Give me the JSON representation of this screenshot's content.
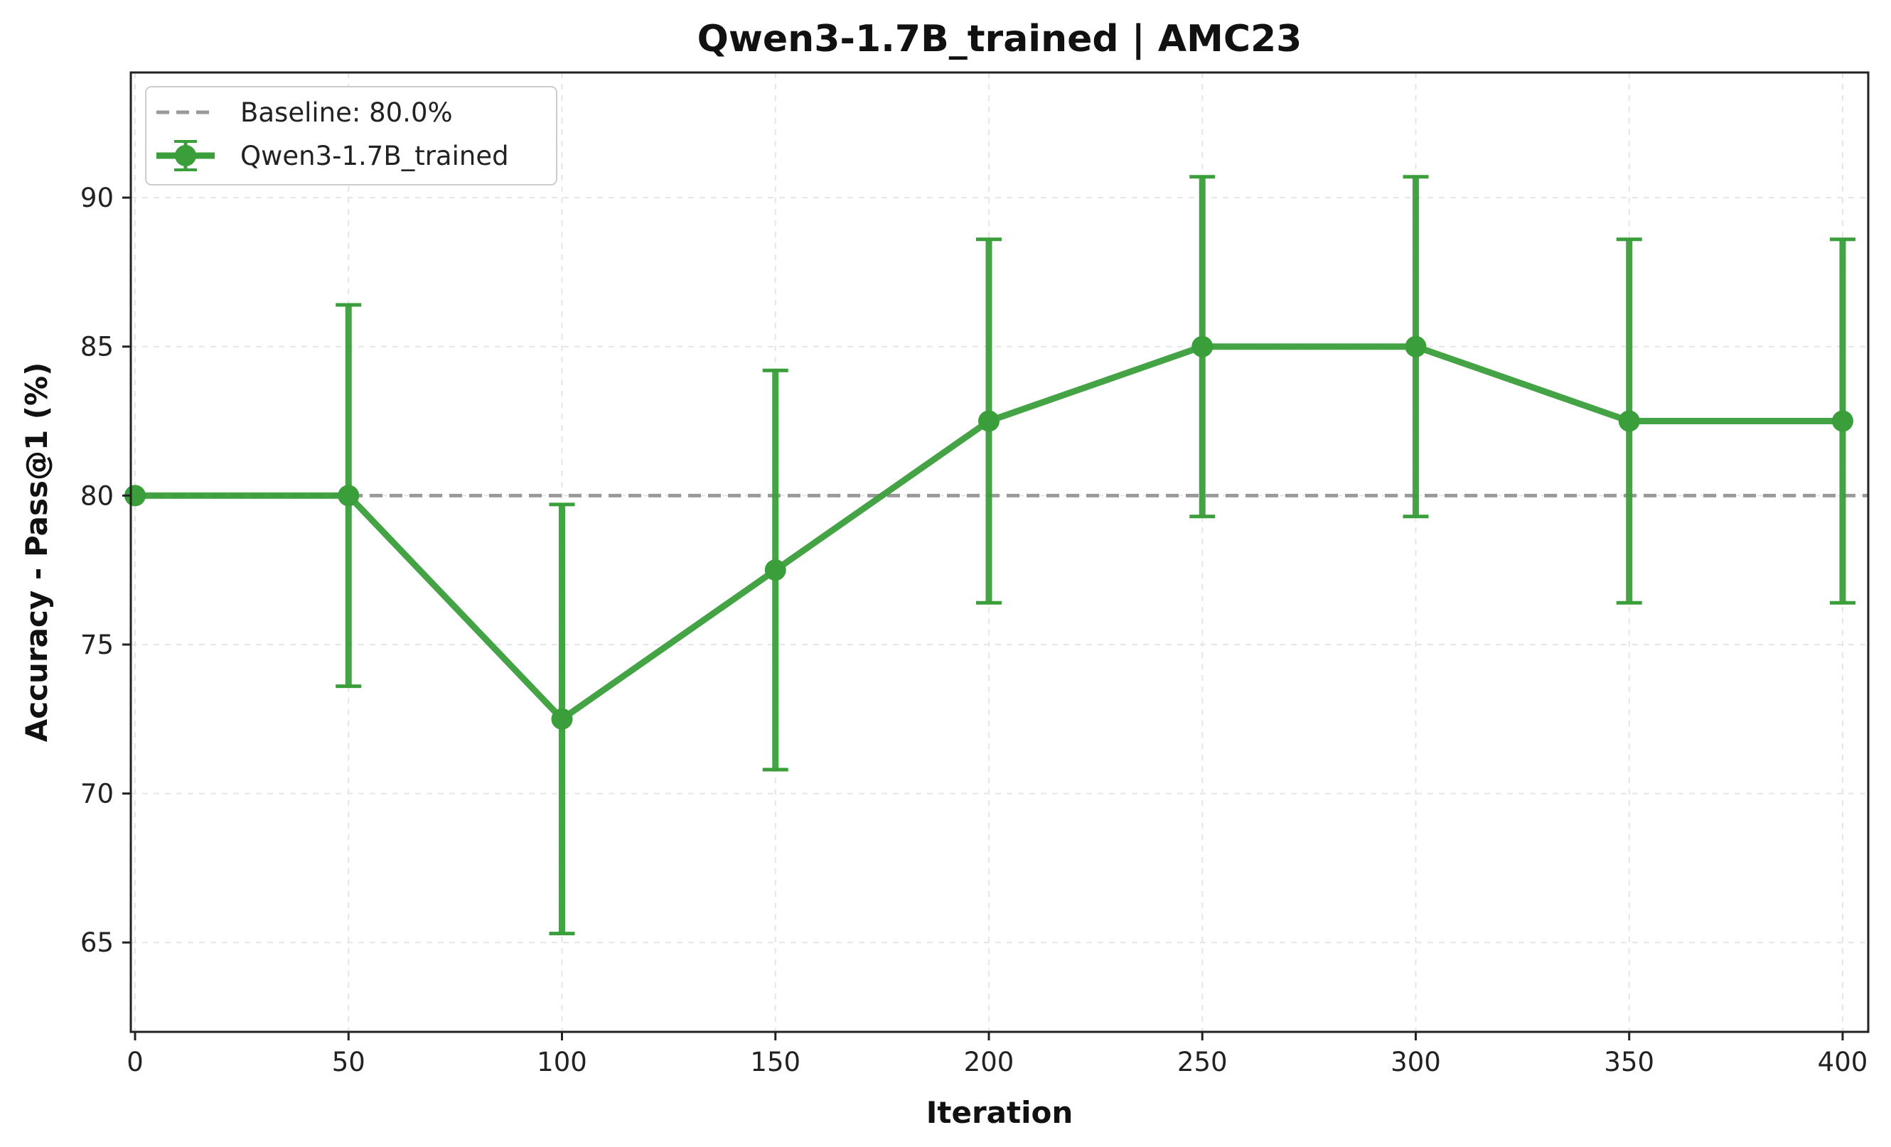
{
  "chart_data": {
    "type": "line",
    "title": "Qwen3-1.7B_trained | AMC23",
    "xlabel": "Iteration",
    "ylabel": "Accuracy - Pass@1 (%)",
    "xlim": [
      -1,
      406
    ],
    "ylim": [
      62,
      94.2
    ],
    "xticks": [
      0,
      50,
      100,
      150,
      200,
      250,
      300,
      350,
      400
    ],
    "yticks": [
      65,
      70,
      75,
      80,
      85,
      90
    ],
    "grid": true,
    "legend_position": "top-left",
    "baseline": {
      "label": "Baseline: 80.0%",
      "value": 80.0,
      "color": "#999999"
    },
    "series": [
      {
        "name": "Qwen3-1.7B_trained",
        "color": "#3a9e3a",
        "x": [
          0,
          50,
          100,
          150,
          200,
          250,
          300,
          350,
          400
        ],
        "y": [
          80.0,
          80.0,
          72.5,
          77.5,
          82.5,
          85.0,
          85.0,
          82.5,
          82.5
        ],
        "err_low": [
          null,
          73.6,
          65.3,
          70.8,
          76.4,
          79.3,
          79.3,
          76.4,
          76.4
        ],
        "err_high": [
          null,
          86.4,
          79.7,
          84.2,
          88.6,
          90.7,
          90.7,
          88.6,
          88.6
        ]
      }
    ]
  }
}
